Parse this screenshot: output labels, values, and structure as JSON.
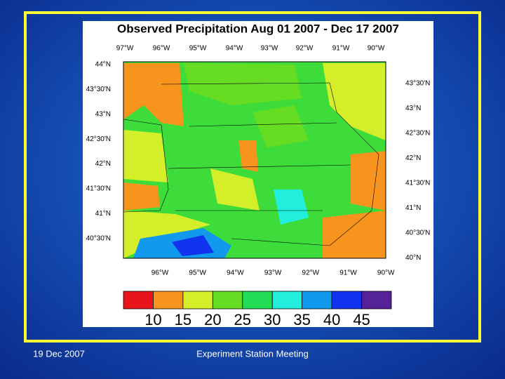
{
  "slide": {
    "footer_date": "19 Dec 2007",
    "footer_title": "Experiment Station Meeting"
  },
  "map": {
    "title": "Observed Precipitation Aug 01 2007 - Dec 17 2007",
    "top_lon_labels": [
      "97°W",
      "96°W",
      "95°W",
      "94°W",
      "93°W",
      "92°W",
      "91°W",
      "90°W"
    ],
    "bottom_lon_labels": [
      "96°W",
      "95°W",
      "94°W",
      "93°W",
      "92°W",
      "91°W",
      "90°W"
    ],
    "left_lat_labels": [
      "44°N",
      "43°30'N",
      "43°N",
      "42°30'N",
      "42°N",
      "41°30'N",
      "41°N",
      "40°30'N"
    ],
    "right_lat_labels": [
      "43°30'N",
      "43°N",
      "42°30'N",
      "42°N",
      "41°30'N",
      "41°N",
      "40°30'N",
      "40°N"
    ],
    "colorbar": {
      "colors": [
        "#e8141c",
        "#f7941d",
        "#d4ee2a",
        "#66dd22",
        "#22dd55",
        "#22eedd",
        "#1199ee",
        "#1133ee",
        "#552299"
      ],
      "labels": [
        10,
        15,
        20,
        25,
        30,
        35,
        40,
        45
      ]
    }
  }
}
